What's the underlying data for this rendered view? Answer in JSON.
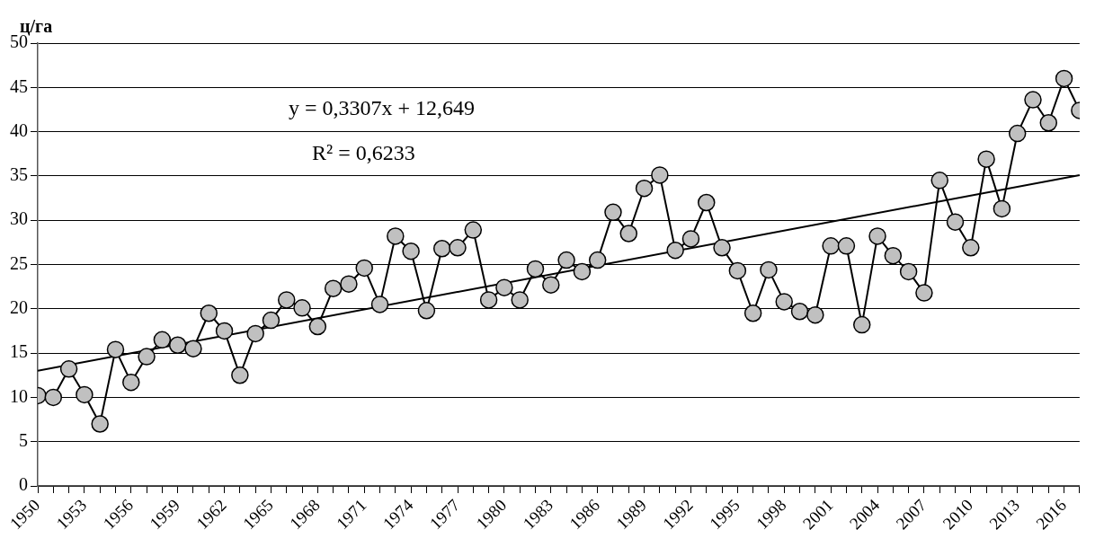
{
  "chart_data": {
    "type": "line",
    "ylabel": "ц/га",
    "annotations": [
      "y = 0,3307x + 12,649",
      "R² = 0,6233"
    ],
    "x": [
      1950,
      1951,
      1952,
      1953,
      1954,
      1955,
      1956,
      1957,
      1958,
      1959,
      1960,
      1961,
      1962,
      1963,
      1964,
      1965,
      1966,
      1967,
      1968,
      1969,
      1970,
      1971,
      1972,
      1973,
      1974,
      1975,
      1976,
      1977,
      1978,
      1979,
      1980,
      1981,
      1982,
      1983,
      1984,
      1985,
      1986,
      1987,
      1988,
      1989,
      1990,
      1991,
      1992,
      1993,
      1994,
      1995,
      1996,
      1997,
      1998,
      1999,
      2000,
      2001,
      2002,
      2003,
      2004,
      2005,
      2006,
      2007,
      2008,
      2009,
      2010,
      2011,
      2012,
      2013,
      2014,
      2015,
      2016,
      2017
    ],
    "series": [
      {
        "color": "#000000",
        "marker": "circle",
        "values": [
          10.2,
          10.0,
          13.2,
          10.3,
          7.0,
          15.4,
          11.7,
          14.6,
          16.5,
          15.9,
          15.5,
          19.5,
          17.5,
          12.5,
          17.2,
          18.7,
          21.0,
          20.1,
          18.0,
          22.3,
          22.8,
          24.6,
          20.5,
          28.2,
          26.5,
          19.8,
          26.8,
          26.9,
          28.9,
          21.0,
          22.4,
          21.0,
          24.5,
          22.7,
          25.5,
          24.2,
          25.5,
          30.9,
          28.5,
          33.6,
          35.1,
          26.6,
          27.9,
          32.0,
          26.9,
          24.3,
          19.5,
          24.4,
          20.8,
          19.7,
          19.3,
          27.1,
          27.1,
          18.2,
          28.2,
          26.0,
          24.2,
          21.8,
          34.5,
          29.8,
          26.9,
          36.9,
          31.3,
          39.8,
          43.6,
          41.0,
          46.0,
          42.4
        ]
      },
      {
        "type": "line",
        "color": "#000000",
        "marker": "none",
        "x": [
          1950,
          2017
        ],
        "values": [
          13.0,
          35.1
        ]
      }
    ],
    "xlim": [
      1950,
      2017
    ],
    "xticks": [
      1950,
      {
        "value": 1951,
        "label": null
      },
      {
        "value": 1952,
        "label": null
      },
      1953,
      {
        "value": 1954,
        "label": null
      },
      {
        "value": 1955,
        "label": null
      },
      1956,
      {
        "value": 1957,
        "label": null
      },
      {
        "value": 1958,
        "label": null
      },
      1959,
      {
        "value": 1960,
        "label": null
      },
      {
        "value": 1961,
        "label": null
      },
      1962,
      {
        "value": 1963,
        "label": null
      },
      {
        "value": 1964,
        "label": null
      },
      1965,
      {
        "value": 1966,
        "label": null
      },
      {
        "value": 1967,
        "label": null
      },
      1968,
      {
        "value": 1969,
        "label": null
      },
      {
        "value": 1970,
        "label": null
      },
      1971,
      {
        "value": 1972,
        "label": null
      },
      {
        "value": 1973,
        "label": null
      },
      1974,
      {
        "value": 1975,
        "label": null
      },
      {
        "value": 1976,
        "label": null
      },
      1977,
      {
        "value": 1978,
        "label": null
      },
      {
        "value": 1979,
        "label": null
      },
      1980,
      {
        "value": 1981,
        "label": null
      },
      {
        "value": 1982,
        "label": null
      },
      1983,
      {
        "value": 1984,
        "label": null
      },
      {
        "value": 1985,
        "label": null
      },
      1986,
      {
        "value": 1987,
        "label": null
      },
      {
        "value": 1988,
        "label": null
      },
      1989,
      {
        "value": 1990,
        "label": null
      },
      {
        "value": 1991,
        "label": null
      },
      1992,
      {
        "value": 1993,
        "label": null
      },
      {
        "value": 1994,
        "label": null
      },
      1995,
      {
        "value": 1996,
        "label": null
      },
      {
        "value": 1997,
        "label": null
      },
      1998,
      {
        "value": 1999,
        "label": null
      },
      {
        "value": 2000,
        "label": null
      },
      2001,
      {
        "value": 2002,
        "label": null
      },
      {
        "value": 2003,
        "label": null
      },
      2004,
      {
        "value": 2005,
        "label": null
      },
      {
        "value": 2006,
        "label": null
      },
      2007,
      {
        "value": 2008,
        "label": null
      },
      {
        "value": 2009,
        "label": null
      },
      2010,
      {
        "value": 2011,
        "label": null
      },
      {
        "value": 2012,
        "label": null
      },
      2013,
      {
        "value": 2014,
        "label": null
      },
      {
        "value": 2015,
        "label": null
      },
      2016,
      {
        "value": 2017,
        "label": null
      }
    ],
    "ylim": [
      0,
      50
    ],
    "yticks": [
      0,
      5,
      10,
      15,
      20,
      25,
      30,
      35,
      40,
      45,
      50
    ],
    "grid": "y",
    "legend": false
  }
}
